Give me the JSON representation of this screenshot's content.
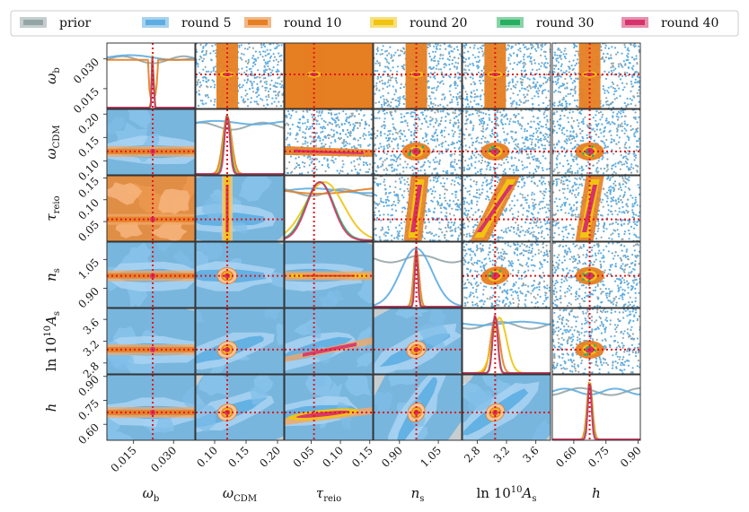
{
  "chart_data": {
    "type": "corner",
    "legend": {
      "placement": "top",
      "entries": [
        {
          "name": "prior",
          "color": "#95a5a6"
        },
        {
          "name": "round 5",
          "color": "#5dade2"
        },
        {
          "name": "round 10",
          "color": "#e67e22"
        },
        {
          "name": "round 20",
          "color": "#f1c40f"
        },
        {
          "name": "round 30",
          "color": "#27ae60"
        },
        {
          "name": "round 40",
          "color": "#d6336c"
        }
      ]
    },
    "params": [
      {
        "key": "omega_b",
        "label": "ω_b",
        "sub": "b",
        "range": [
          0.005,
          0.038
        ],
        "ticks": [
          0.015,
          0.03
        ],
        "tick_labels": [
          "0.015",
          "0.030"
        ],
        "truth": 0.0222
      },
      {
        "key": "omega_cdm",
        "label": "ω_CDM",
        "sub": "CDM",
        "range": [
          0.07,
          0.21
        ],
        "ticks": [
          0.1,
          0.15,
          0.2
        ],
        "tick_labels": [
          "0.10",
          "0.15",
          "0.20"
        ],
        "truth": 0.12
      },
      {
        "key": "tau_reio",
        "label": "τ_reio",
        "sub": "reio",
        "range": [
          0.005,
          0.155
        ],
        "ticks": [
          0.05,
          0.1,
          0.15
        ],
        "tick_labels": [
          "0.05",
          "0.10",
          "0.15"
        ],
        "truth": 0.055
      },
      {
        "key": "n_s",
        "label": "n_s",
        "sub": "s",
        "range": [
          0.8,
          1.14
        ],
        "ticks": [
          0.9,
          1.05
        ],
        "tick_labels": [
          "0.90",
          "1.05"
        ],
        "truth": 0.965
      },
      {
        "key": "ln10As",
        "label": "ln 10¹⁰A_s",
        "sub": "s",
        "range": [
          2.6,
          3.8
        ],
        "ticks": [
          2.8,
          3.2,
          3.6
        ],
        "tick_labels": [
          "2.8",
          "3.2",
          "3.6"
        ],
        "truth": 3.045
      },
      {
        "key": "h",
        "label": "h",
        "sub": "",
        "range": [
          0.5,
          0.91
        ],
        "ticks": [
          0.6,
          0.75,
          0.9
        ],
        "tick_labels": [
          "0.60",
          "0.75",
          "0.90"
        ],
        "truth": 0.674
      }
    ],
    "truth_line_color": "#e8141a",
    "grid": false
  },
  "labels": {
    "axis": {
      "omega_b": {
        "base": "ω",
        "sub": "b"
      },
      "omega_cdm": {
        "base": "ω",
        "sub": "CDM"
      },
      "tau_reio": {
        "base": "τ",
        "sub": "reio"
      },
      "n_s": {
        "base": "n",
        "sub": "s"
      },
      "ln10As": {
        "base": "ln 10",
        "sup": "10",
        "tail": "A",
        "sub": "s"
      },
      "h": {
        "base": "h",
        "sub": ""
      }
    }
  }
}
